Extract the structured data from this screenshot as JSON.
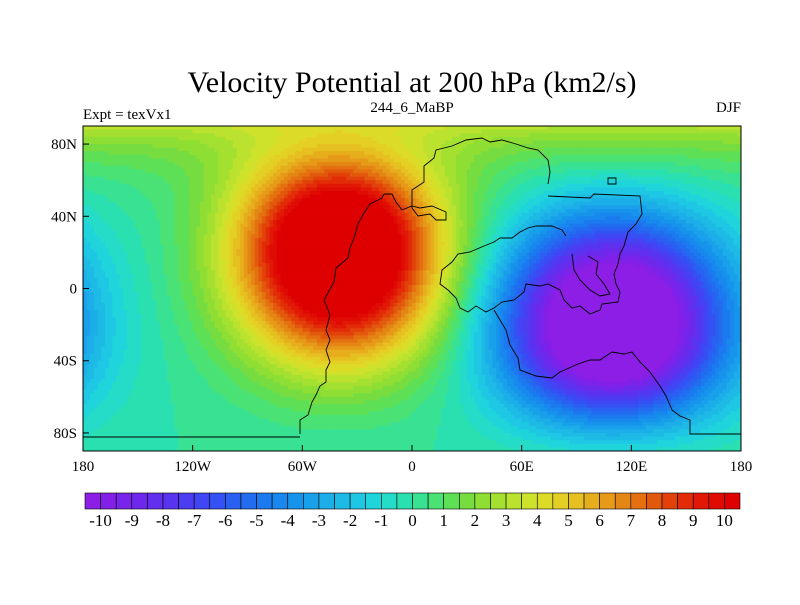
{
  "chart_data": {
    "type": "heatmap",
    "title": "Velocity Potential at 200 hPa (km2/s)",
    "left_label": "Expt = texVx1",
    "center_label": "244_6_MaBP",
    "right_label": "DJF",
    "xlim": [
      -180,
      180
    ],
    "ylim": [
      -90,
      90
    ],
    "x_ticks": [
      {
        "value": -180,
        "label": "180"
      },
      {
        "value": -120,
        "label": "120W"
      },
      {
        "value": -60,
        "label": "60W"
      },
      {
        "value": 0,
        "label": "0"
      },
      {
        "value": 60,
        "label": "60E"
      },
      {
        "value": 120,
        "label": "120E"
      },
      {
        "value": 180,
        "label": "180"
      }
    ],
    "y_ticks": [
      {
        "value": 80,
        "label": "80N"
      },
      {
        "value": 40,
        "label": "40N"
      },
      {
        "value": 0,
        "label": "0"
      },
      {
        "value": -40,
        "label": "40S"
      },
      {
        "value": -80,
        "label": "80S"
      }
    ],
    "field_centers": [
      {
        "name": "positive-maximum",
        "lon": -40,
        "lat": 20,
        "value": 11
      },
      {
        "name": "negative-minimum",
        "lon": 110,
        "lat": -20,
        "value": -11
      }
    ],
    "colorbar": {
      "min": -10.5,
      "max": 10.5,
      "step": 0.5,
      "labels": [
        "-10",
        "-9",
        "-8",
        "-7",
        "-6",
        "-5",
        "-4",
        "-3",
        "-2",
        "-1",
        "0",
        "1",
        "2",
        "3",
        "4",
        "5",
        "6",
        "7",
        "8",
        "9",
        "10"
      ],
      "colors": [
        "#8c1ee6",
        "#8220e8",
        "#7824ea",
        "#6e28ec",
        "#642eee",
        "#5834f0",
        "#4c3cf2",
        "#4046f4",
        "#3452f4",
        "#2a60f2",
        "#226cf0",
        "#1c7af0",
        "#1888ee",
        "#1694ec",
        "#18a0ea",
        "#1caee8",
        "#1ebae6",
        "#1ec8e4",
        "#20d4dc",
        "#24dcc8",
        "#2ae0b0",
        "#38e292",
        "#4ae274",
        "#5ee056",
        "#76dc40",
        "#8ede34",
        "#a4e030",
        "#bae22e",
        "#cee22c",
        "#dcdc28",
        "#e4d024",
        "#e6c020",
        "#e6ae1c",
        "#e69a18",
        "#e48614",
        "#e47010",
        "#e2580c",
        "#e2420a",
        "#e22c08",
        "#e21806",
        "#e00c04",
        "#de0000"
      ]
    }
  }
}
